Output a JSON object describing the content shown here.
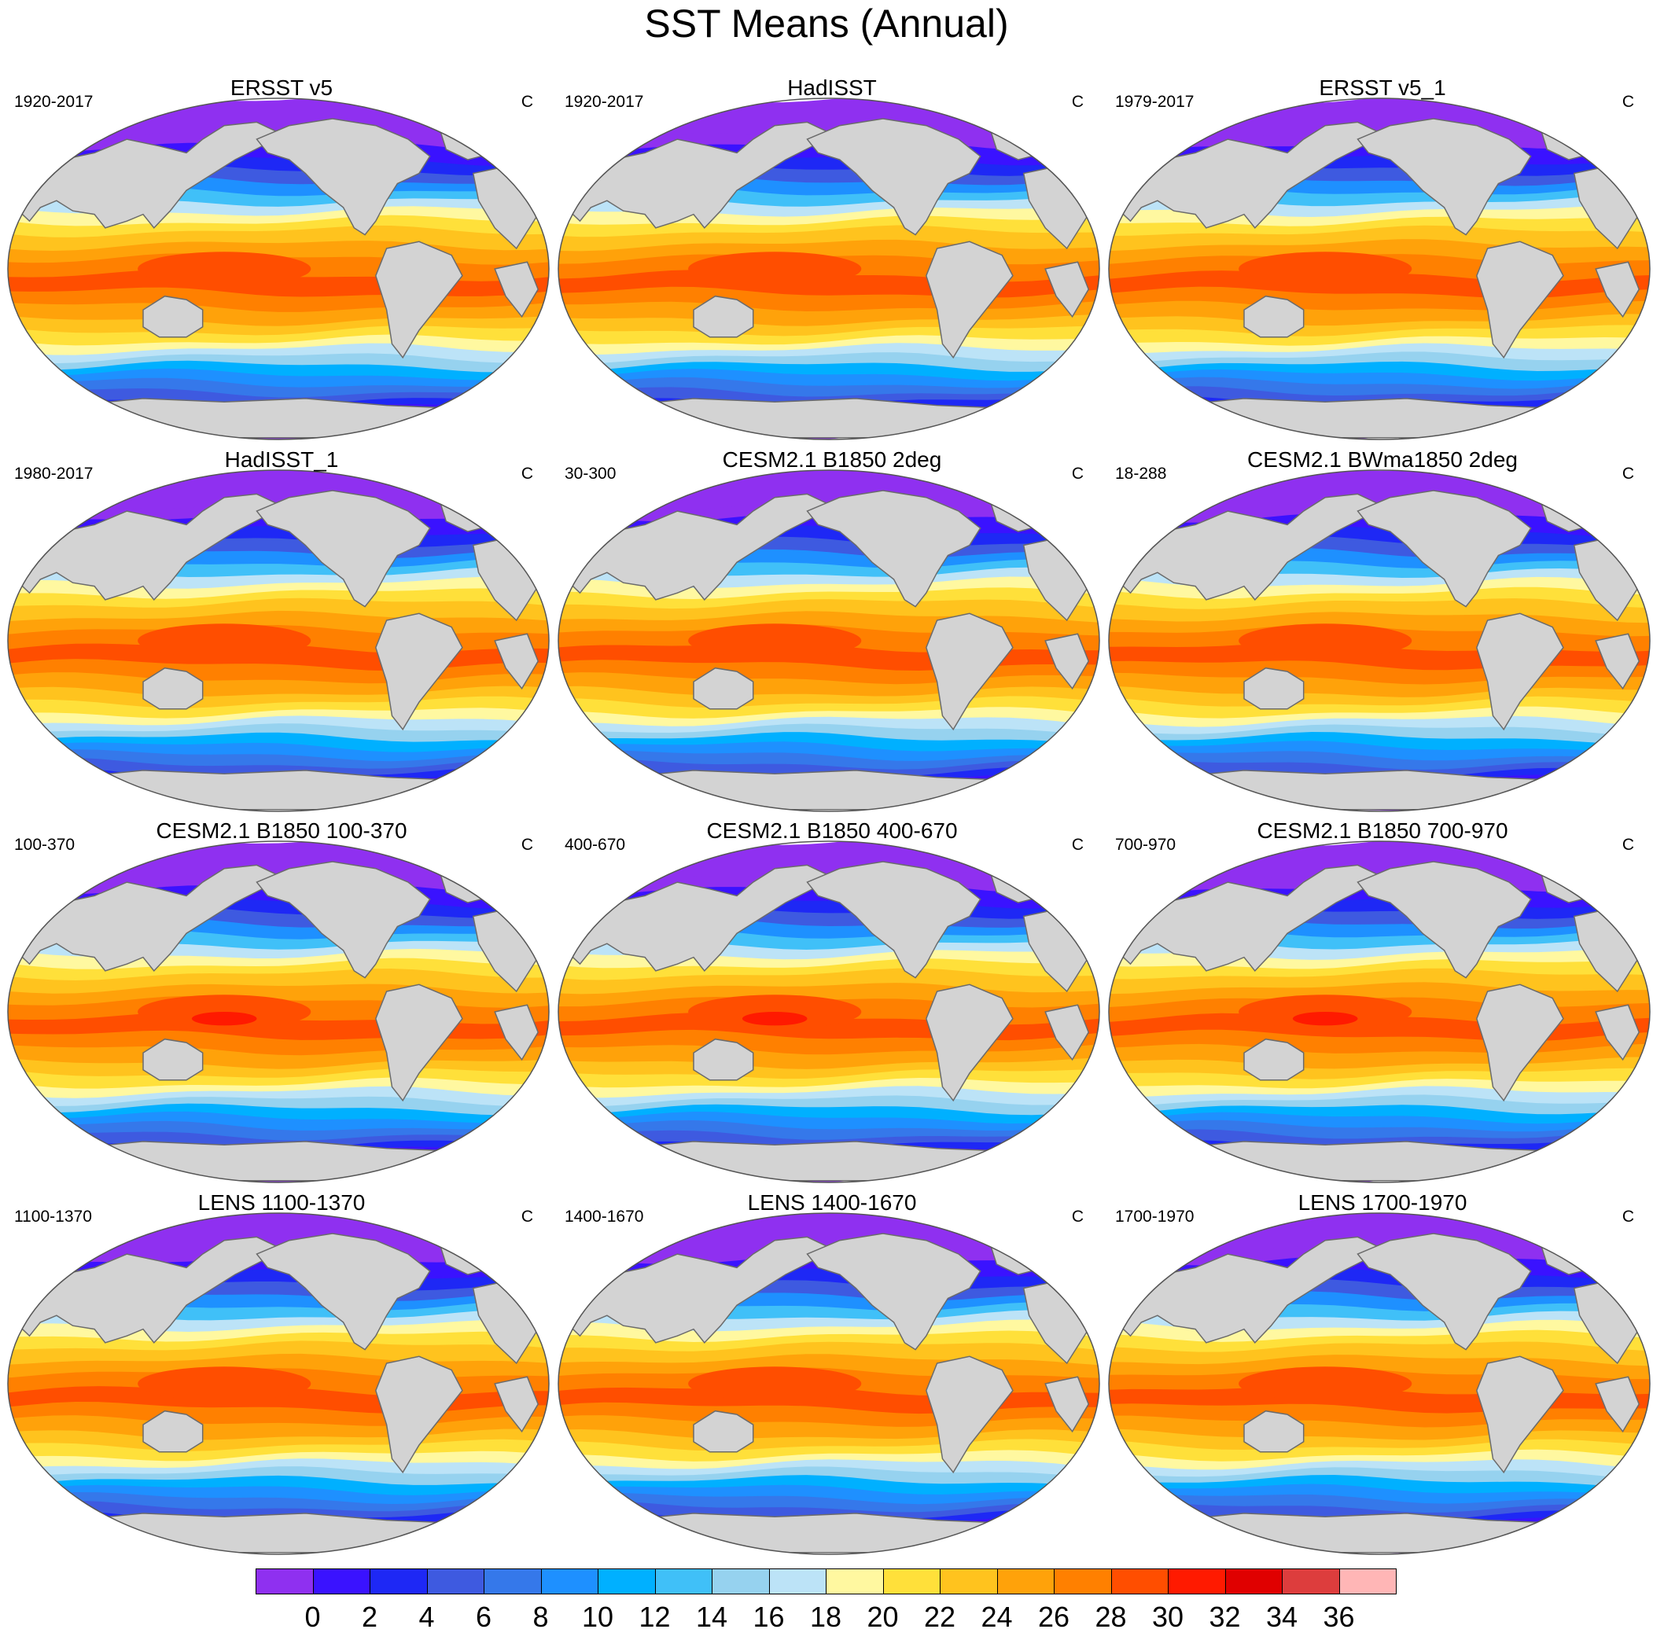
{
  "title": "SST Means (Annual)",
  "units": "C",
  "panels": [
    {
      "title": "ERSST v5",
      "period": "1920-2017",
      "units": "C"
    },
    {
      "title": "HadISST",
      "period": "1920-2017",
      "units": "C"
    },
    {
      "title": "ERSST v5_1",
      "period": "1979-2017",
      "units": "C"
    },
    {
      "title": "HadISST_1",
      "period": "1980-2017",
      "units": "C"
    },
    {
      "title": "CESM2.1 B1850 2deg",
      "period": "30-300",
      "units": "C"
    },
    {
      "title": "CESM2.1 BWma1850 2deg",
      "period": "18-288",
      "units": "C"
    },
    {
      "title": "CESM2.1 B1850 100-370",
      "period": "100-370",
      "units": "C"
    },
    {
      "title": "CESM2.1 B1850 400-670",
      "period": "400-670",
      "units": "C"
    },
    {
      "title": "CESM2.1 B1850 700-970",
      "period": "700-970",
      "units": "C"
    },
    {
      "title": "LENS 1100-1370",
      "period": "1100-1370",
      "units": "C"
    },
    {
      "title": "LENS 1400-1670",
      "period": "1400-1670",
      "units": "C"
    },
    {
      "title": "LENS 1700-1970",
      "period": "1700-1970",
      "units": "C"
    }
  ],
  "colorbar": {
    "labels": [
      "0",
      "2",
      "4",
      "6",
      "8",
      "10",
      "12",
      "14",
      "16",
      "18",
      "20",
      "22",
      "24",
      "26",
      "28",
      "30",
      "32",
      "34",
      "36"
    ],
    "colors": [
      "#8f30f0",
      "#3a12ff",
      "#1e28f5",
      "#3e5ae0",
      "#3578ea",
      "#1e90ff",
      "#00b0ff",
      "#40c0f8",
      "#96d2ef",
      "#bce3f7",
      "#fff8a0",
      "#ffe03a",
      "#ffc31e",
      "#ffa20a",
      "#ff8000",
      "#ff4e00",
      "#ff1a00",
      "#e00000",
      "#dd3d3d",
      "#ffb6b6"
    ]
  },
  "colors": {
    "land": "#d3d3d3",
    "coast": "#6b6b6b",
    "missing": "#ffffff"
  }
}
